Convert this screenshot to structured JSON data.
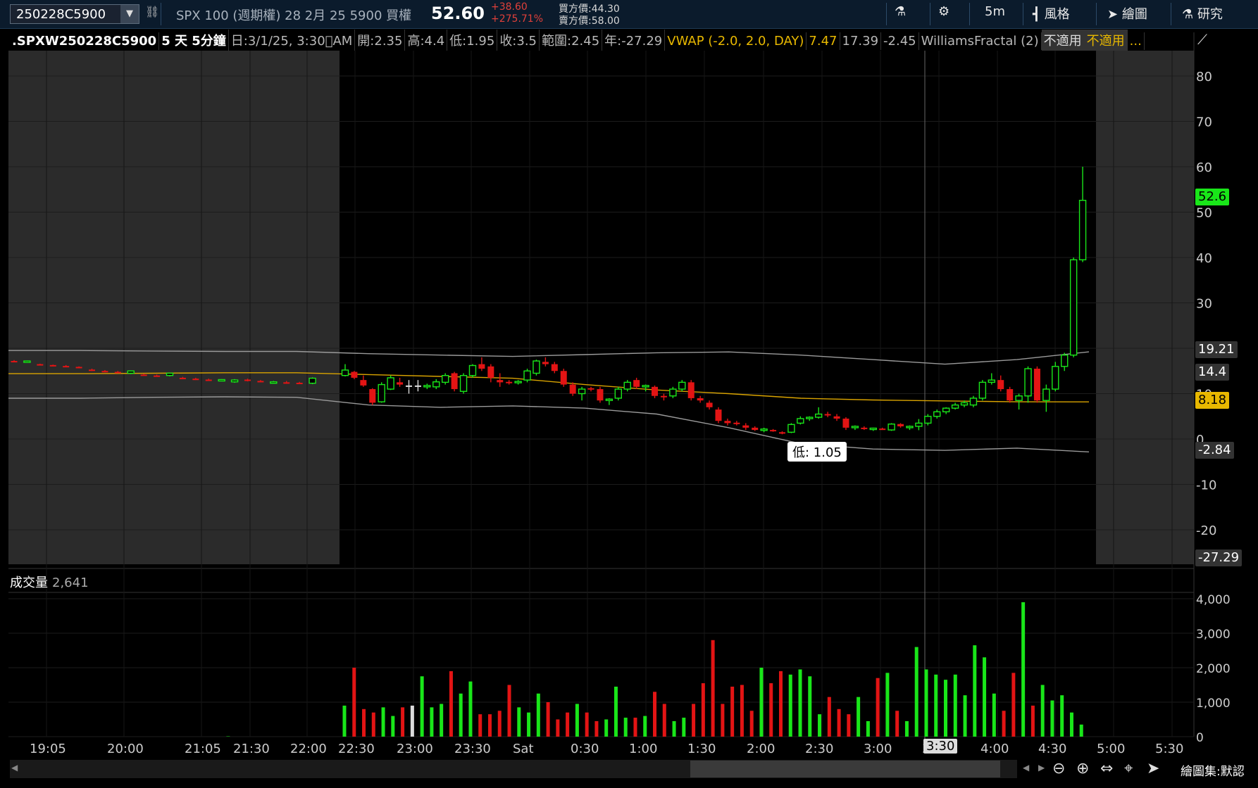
{
  "toolbar": {
    "symbol": "250228C5900",
    "description": "SPX 100 (週期權) 28 2月 25 5900 買權",
    "last_price": "52.60",
    "change": "+38.60",
    "change_pct": "+275.71%",
    "bid": "買方價:44.30",
    "ask": "賣方價:58.00",
    "timeframe": "5m",
    "style_label": "風格",
    "drawing_label": "繪圖",
    "studies_label": "研究"
  },
  "header": {
    "symbol": ".SPXW250228C5900",
    "period": "5 天 5分鐘",
    "date": "日:3/1/25, 3:30\u0000AM",
    "open": "開:2.35",
    "high": "高:4.4",
    "low": "低:1.95",
    "close": "收:3.5",
    "range": "範圍:2.45",
    "year": "年:-27.29",
    "vwap": "VWAP (-2.0, 2.0, DAY)",
    "vwap_v1": "7.47",
    "vwap_v2": "17.39",
    "vwap_v3": "-2.45",
    "fractal": "WilliamsFractal (2)",
    "na1": "不適用",
    "na2": "不適用",
    "more": "..."
  },
  "price_tags": {
    "last": "52.6",
    "upper": "19.21",
    "mid": "14.4",
    "vwap": "8.18",
    "lower": "-2.84",
    "year": "-27.29"
  },
  "low_callout": "低: 1.05",
  "crosshair_time": "3:30",
  "volume": {
    "label": "成交量",
    "value": "2,641"
  },
  "bottom": {
    "layout_label": "繪圖集:默認"
  },
  "colors": {
    "up": "#19e619",
    "down": "#e31414",
    "neutral": "#dcdcdc",
    "vwap": "#d9a300",
    "band": "#9a9a9a",
    "last_tag": "#19e619",
    "vwap_tag": "#e8b800"
  },
  "chart_data": [
    {
      "type": "candlestick",
      "title": ".SPXW250228C5900 5 天 5分鐘",
      "ylim": [
        -27.29,
        87
      ],
      "y_ticks": [
        80,
        70,
        60,
        50,
        40,
        30,
        20,
        10,
        0,
        -10,
        -20
      ],
      "x_tick_labels": [
        "19:05",
        "20:00",
        "21:05",
        "21:30",
        "22:00",
        "22:30",
        "23:00",
        "23:30",
        "Sat",
        "0:30",
        "1:00",
        "1:30",
        "2:00",
        "2:30",
        "3:00",
        "3:30",
        "4:00",
        "4:30",
        "5:00",
        "5:30"
      ],
      "candles": [
        {
          "o": 17.2,
          "h": 17.4,
          "l": 17.0,
          "c": 17.0,
          "d": "down"
        },
        {
          "o": 17.1,
          "h": 17.3,
          "l": 16.9,
          "c": 17.2,
          "d": "up"
        },
        {
          "o": 16.5,
          "h": 16.6,
          "l": 16.2,
          "c": 16.3,
          "d": "down"
        },
        {
          "o": 16.3,
          "h": 16.4,
          "l": 16.1,
          "c": 16.2,
          "d": "down"
        },
        {
          "o": 16.1,
          "h": 16.3,
          "l": 15.9,
          "c": 16.0,
          "d": "down"
        },
        {
          "o": 15.9,
          "h": 16.0,
          "l": 15.6,
          "c": 15.7,
          "d": "down"
        },
        {
          "o": 15.3,
          "h": 15.5,
          "l": 15.0,
          "c": 15.1,
          "d": "down"
        },
        {
          "o": 15.0,
          "h": 15.2,
          "l": 14.7,
          "c": 14.9,
          "d": "down"
        },
        {
          "o": 14.8,
          "h": 15.0,
          "l": 14.5,
          "c": 14.6,
          "d": "down"
        },
        {
          "o": 14.5,
          "h": 15.1,
          "l": 14.3,
          "c": 15.0,
          "d": "up"
        },
        {
          "o": 14.2,
          "h": 14.4,
          "l": 14.0,
          "c": 14.1,
          "d": "down"
        },
        {
          "o": 14.0,
          "h": 14.2,
          "l": 13.8,
          "c": 13.9,
          "d": "down"
        },
        {
          "o": 14.0,
          "h": 14.6,
          "l": 13.8,
          "c": 14.5,
          "d": "up"
        },
        {
          "o": 13.5,
          "h": 13.7,
          "l": 13.2,
          "c": 13.4,
          "d": "down"
        },
        {
          "o": 13.3,
          "h": 13.5,
          "l": 13.0,
          "c": 13.1,
          "d": "down"
        },
        {
          "o": 13.1,
          "h": 13.3,
          "l": 12.8,
          "c": 13.0,
          "d": "down"
        },
        {
          "o": 13.0,
          "h": 13.2,
          "l": 12.9,
          "c": 13.1,
          "d": "up"
        },
        {
          "o": 12.6,
          "h": 13.2,
          "l": 12.4,
          "c": 13.0,
          "d": "up"
        },
        {
          "o": 13.1,
          "h": 13.3,
          "l": 12.7,
          "c": 12.8,
          "d": "down"
        },
        {
          "o": 12.8,
          "h": 13.0,
          "l": 12.5,
          "c": 12.6,
          "d": "down"
        },
        {
          "o": 12.5,
          "h": 12.8,
          "l": 12.3,
          "c": 12.6,
          "d": "up"
        },
        {
          "o": 12.5,
          "h": 12.8,
          "l": 12.2,
          "c": 12.3,
          "d": "down"
        },
        {
          "o": 12.4,
          "h": 12.6,
          "l": 12.1,
          "c": 12.2,
          "d": "down"
        },
        {
          "o": 12.3,
          "h": 13.6,
          "l": 12.1,
          "c": 13.4,
          "d": "up"
        },
        {
          "o": 14.0,
          "h": 16.5,
          "l": 13.8,
          "c": 15.2,
          "d": "up"
        },
        {
          "o": 14.8,
          "h": 15.0,
          "l": 13.2,
          "c": 13.5,
          "d": "down"
        },
        {
          "o": 13.0,
          "h": 14.0,
          "l": 11.5,
          "c": 11.8,
          "d": "down"
        },
        {
          "o": 11.0,
          "h": 11.2,
          "l": 7.5,
          "c": 8.0,
          "d": "down"
        },
        {
          "o": 8.2,
          "h": 12.5,
          "l": 8.0,
          "c": 12.0,
          "d": "up"
        },
        {
          "o": 11.0,
          "h": 14.0,
          "l": 10.8,
          "c": 13.5,
          "d": "up"
        },
        {
          "o": 12.5,
          "h": 13.5,
          "l": 11.5,
          "c": 12.0,
          "d": "down"
        },
        {
          "o": 11.5,
          "h": 13.0,
          "l": 10.0,
          "c": 11.8,
          "d": "neutral"
        },
        {
          "o": 11.5,
          "h": 13.0,
          "l": 10.5,
          "c": 11.8,
          "d": "neutral"
        },
        {
          "o": 11.8,
          "h": 12.2,
          "l": 11.0,
          "c": 11.5,
          "d": "up"
        },
        {
          "o": 11.5,
          "h": 13.2,
          "l": 11.0,
          "c": 12.6,
          "d": "up"
        },
        {
          "o": 12.5,
          "h": 14.5,
          "l": 12.0,
          "c": 14.0,
          "d": "up"
        },
        {
          "o": 14.5,
          "h": 14.8,
          "l": 10.5,
          "c": 11.0,
          "d": "down"
        },
        {
          "o": 10.5,
          "h": 14.5,
          "l": 10.0,
          "c": 14.0,
          "d": "up"
        },
        {
          "o": 14.0,
          "h": 16.5,
          "l": 13.5,
          "c": 16.2,
          "d": "up"
        },
        {
          "o": 16.5,
          "h": 18.0,
          "l": 15.0,
          "c": 15.5,
          "d": "down"
        },
        {
          "o": 16.0,
          "h": 16.5,
          "l": 12.5,
          "c": 13.5,
          "d": "down"
        },
        {
          "o": 13.0,
          "h": 14.5,
          "l": 11.5,
          "c": 12.5,
          "d": "down"
        },
        {
          "o": 12.5,
          "h": 13.0,
          "l": 12.0,
          "c": 12.6,
          "d": "down"
        },
        {
          "o": 12.5,
          "h": 13.0,
          "l": 12.0,
          "c": 12.7,
          "d": "up"
        },
        {
          "o": 13.0,
          "h": 15.5,
          "l": 12.5,
          "c": 15.0,
          "d": "up"
        },
        {
          "o": 14.5,
          "h": 17.5,
          "l": 14.0,
          "c": 17.2,
          "d": "up"
        },
        {
          "o": 17.0,
          "h": 18.0,
          "l": 16.0,
          "c": 16.5,
          "d": "down"
        },
        {
          "o": 16.5,
          "h": 17.0,
          "l": 14.5,
          "c": 15.0,
          "d": "down"
        },
        {
          "o": 15.0,
          "h": 15.5,
          "l": 11.5,
          "c": 12.0,
          "d": "down"
        },
        {
          "o": 12.0,
          "h": 12.5,
          "l": 9.5,
          "c": 10.0,
          "d": "down"
        },
        {
          "o": 10.0,
          "h": 11.5,
          "l": 8.5,
          "c": 11.0,
          "d": "up"
        },
        {
          "o": 11.0,
          "h": 11.5,
          "l": 10.5,
          "c": 11.2,
          "d": "down"
        },
        {
          "o": 11.0,
          "h": 11.5,
          "l": 8.0,
          "c": 8.5,
          "d": "down"
        },
        {
          "o": 8.5,
          "h": 9.0,
          "l": 7.5,
          "c": 8.8,
          "d": "up"
        },
        {
          "o": 9.0,
          "h": 11.5,
          "l": 8.5,
          "c": 11.0,
          "d": "up"
        },
        {
          "o": 11.0,
          "h": 13.0,
          "l": 10.5,
          "c": 12.5,
          "d": "up"
        },
        {
          "o": 13.0,
          "h": 13.5,
          "l": 11.0,
          "c": 11.5,
          "d": "down"
        },
        {
          "o": 11.5,
          "h": 12.0,
          "l": 10.5,
          "c": 11.8,
          "d": "up"
        },
        {
          "o": 11.5,
          "h": 11.8,
          "l": 9.0,
          "c": 9.5,
          "d": "down"
        },
        {
          "o": 9.5,
          "h": 10.0,
          "l": 8.5,
          "c": 9.2,
          "d": "down"
        },
        {
          "o": 9.5,
          "h": 11.5,
          "l": 9.0,
          "c": 11.0,
          "d": "up"
        },
        {
          "o": 11.0,
          "h": 13.0,
          "l": 10.5,
          "c": 12.5,
          "d": "up"
        },
        {
          "o": 12.5,
          "h": 13.0,
          "l": 8.5,
          "c": 9.0,
          "d": "down"
        },
        {
          "o": 9.0,
          "h": 9.5,
          "l": 8.0,
          "c": 8.5,
          "d": "down"
        },
        {
          "o": 8.0,
          "h": 8.5,
          "l": 6.5,
          "c": 7.0,
          "d": "down"
        },
        {
          "o": 6.5,
          "h": 7.0,
          "l": 3.5,
          "c": 4.0,
          "d": "down"
        },
        {
          "o": 4.0,
          "h": 4.5,
          "l": 3.0,
          "c": 3.5,
          "d": "down"
        },
        {
          "o": 3.5,
          "h": 4.0,
          "l": 3.0,
          "c": 3.6,
          "d": "down"
        },
        {
          "o": 3.0,
          "h": 3.5,
          "l": 2.0,
          "c": 2.5,
          "d": "down"
        },
        {
          "o": 2.5,
          "h": 2.8,
          "l": 1.8,
          "c": 2.0,
          "d": "down"
        },
        {
          "o": 2.0,
          "h": 2.5,
          "l": 1.5,
          "c": 2.2,
          "d": "up"
        },
        {
          "o": 2.0,
          "h": 2.2,
          "l": 1.6,
          "c": 1.8,
          "d": "down"
        },
        {
          "o": 1.5,
          "h": 1.7,
          "l": 1.05,
          "c": 1.2,
          "d": "down"
        },
        {
          "o": 1.5,
          "h": 3.5,
          "l": 1.3,
          "c": 3.2,
          "d": "up"
        },
        {
          "o": 3.5,
          "h": 5.0,
          "l": 3.2,
          "c": 4.5,
          "d": "up"
        },
        {
          "o": 4.5,
          "h": 5.0,
          "l": 4.0,
          "c": 4.8,
          "d": "up"
        },
        {
          "o": 4.8,
          "h": 7.0,
          "l": 4.5,
          "c": 5.5,
          "d": "up"
        },
        {
          "o": 5.5,
          "h": 6.0,
          "l": 4.8,
          "c": 5.2,
          "d": "down"
        },
        {
          "o": 5.0,
          "h": 5.5,
          "l": 4.0,
          "c": 4.5,
          "d": "down"
        },
        {
          "o": 4.5,
          "h": 4.8,
          "l": 2.0,
          "c": 2.5,
          "d": "down"
        },
        {
          "o": 2.5,
          "h": 3.0,
          "l": 2.0,
          "c": 2.8,
          "d": "up"
        },
        {
          "o": 2.5,
          "h": 2.8,
          "l": 2.0,
          "c": 2.2,
          "d": "down"
        },
        {
          "o": 2.2,
          "h": 2.5,
          "l": 1.8,
          "c": 2.4,
          "d": "up"
        },
        {
          "o": 2.2,
          "h": 2.5,
          "l": 2.0,
          "c": 2.3,
          "d": "down"
        },
        {
          "o": 2.0,
          "h": 3.5,
          "l": 1.8,
          "c": 3.3,
          "d": "up"
        },
        {
          "o": 3.3,
          "h": 3.5,
          "l": 2.5,
          "c": 2.8,
          "d": "down"
        },
        {
          "o": 2.5,
          "h": 3.0,
          "l": 2.0,
          "c": 2.8,
          "d": "up"
        },
        {
          "o": 2.8,
          "h": 4.4,
          "l": 1.95,
          "c": 3.5,
          "d": "up"
        },
        {
          "o": 3.5,
          "h": 5.5,
          "l": 3.0,
          "c": 5.0,
          "d": "up"
        },
        {
          "o": 5.0,
          "h": 6.5,
          "l": 4.5,
          "c": 6.0,
          "d": "up"
        },
        {
          "o": 6.0,
          "h": 7.0,
          "l": 5.5,
          "c": 6.8,
          "d": "up"
        },
        {
          "o": 6.8,
          "h": 8.0,
          "l": 6.5,
          "c": 7.5,
          "d": "up"
        },
        {
          "o": 7.5,
          "h": 8.5,
          "l": 7.0,
          "c": 8.0,
          "d": "up"
        },
        {
          "o": 7.5,
          "h": 9.5,
          "l": 7.0,
          "c": 9.0,
          "d": "up"
        },
        {
          "o": 9.0,
          "h": 13.0,
          "l": 8.5,
          "c": 12.5,
          "d": "up"
        },
        {
          "o": 12.5,
          "h": 14.5,
          "l": 12.0,
          "c": 13.0,
          "d": "up"
        },
        {
          "o": 13.0,
          "h": 14.0,
          "l": 10.5,
          "c": 11.0,
          "d": "down"
        },
        {
          "o": 11.0,
          "h": 11.5,
          "l": 8.0,
          "c": 8.5,
          "d": "down"
        },
        {
          "o": 8.5,
          "h": 10.0,
          "l": 6.5,
          "c": 9.5,
          "d": "up"
        },
        {
          "o": 9.5,
          "h": 16.0,
          "l": 8.0,
          "c": 15.5,
          "d": "up"
        },
        {
          "o": 15.5,
          "h": 16.0,
          "l": 8.0,
          "c": 8.5,
          "d": "down"
        },
        {
          "o": 8.5,
          "h": 12.0,
          "l": 6.0,
          "c": 11.0,
          "d": "up"
        },
        {
          "o": 11.0,
          "h": 17.0,
          "l": 10.5,
          "c": 16.0,
          "d": "up"
        },
        {
          "o": 16.0,
          "h": 19.0,
          "l": 15.0,
          "c": 18.5,
          "d": "up"
        },
        {
          "o": 18.5,
          "h": 40.0,
          "l": 18.0,
          "c": 39.5,
          "d": "up"
        },
        {
          "o": 39.5,
          "h": 60.0,
          "l": 39.0,
          "c": 52.6,
          "d": "up"
        }
      ],
      "vwap": [
        14.4,
        14.4,
        14.5,
        14.6,
        14.6,
        14.2,
        13.8,
        13.4,
        12.0,
        10.8,
        10.0,
        9.0,
        8.6,
        8.4,
        8.2,
        8.18
      ],
      "upper_band": [
        19.5,
        19.5,
        19.4,
        19.3,
        19.3,
        18.8,
        18.5,
        18.2,
        18.6,
        19.0,
        19.2,
        18.5,
        17.5,
        16.5,
        17.5,
        19.21
      ],
      "lower_band": [
        9.0,
        9.0,
        9.2,
        9.3,
        9.2,
        7.5,
        7.0,
        7.3,
        6.8,
        5.5,
        2.5,
        -1.0,
        -2.2,
        -2.5,
        -2.0,
        -2.84
      ]
    },
    {
      "type": "bar",
      "title": "成交量",
      "ylim": [
        0,
        4000
      ],
      "y_tick_labels": [
        "4,000",
        "3,000",
        "2,000",
        "1,000",
        "0"
      ],
      "values": [
        0,
        0,
        0,
        0,
        0,
        0,
        0,
        0,
        0,
        0,
        0,
        0,
        0,
        0,
        0,
        0,
        0,
        0,
        0,
        0,
        0,
        0,
        0,
        0,
        0,
        0,
        0,
        0,
        0,
        0,
        0,
        0,
        0,
        10,
        0,
        0,
        0,
        0,
        0,
        0,
        0,
        0,
        0,
        0,
        0,
        0,
        0,
        0,
        900,
        2000,
        800,
        700,
        850,
        600,
        850,
        900,
        1750,
        850,
        950,
        1900,
        1250,
        1600,
        650,
        650,
        750,
        1500,
        850,
        700,
        1250,
        1000,
        500,
        700,
        950,
        700,
        450,
        500,
        1450,
        550,
        550,
        600,
        1300,
        950,
        450,
        550,
        950,
        1550,
        2800,
        950,
        1450,
        1500,
        750,
        2000,
        1550,
        1900,
        1800,
        1950,
        1750,
        650,
        1150,
        800,
        650,
        1150,
        450,
        1700,
        1850,
        750,
        450,
        2600,
        1950,
        1800,
        1650,
        1800,
        1200,
        2650,
        2300,
        1250,
        750,
        1850,
        3900,
        900,
        1500,
        1050,
        1200,
        700,
        350
      ],
      "colors": [
        "down"
      ]
    }
  ]
}
